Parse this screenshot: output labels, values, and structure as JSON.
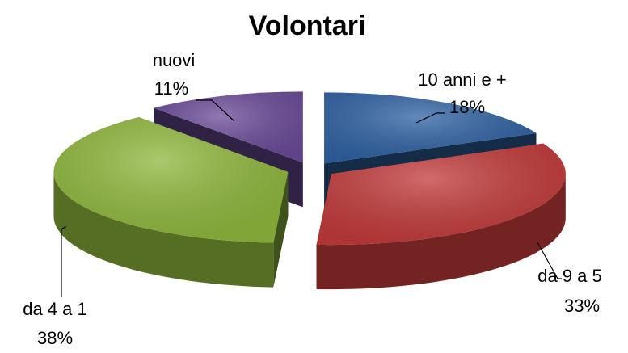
{
  "chart_data": {
    "type": "pie3d",
    "title": "Volontari",
    "categories": [
      "10 anni e +",
      "da 9 a 5",
      "da 4 a 1",
      "nuovi"
    ],
    "values": [
      18,
      33,
      38,
      11
    ],
    "value_labels": [
      "18%",
      "33%",
      "38%",
      "11%"
    ],
    "colors": [
      "#2f62a3",
      "#c23a3a",
      "#8fb73c",
      "#6b4b99"
    ]
  }
}
